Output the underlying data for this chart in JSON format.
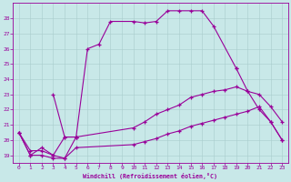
{
  "background_color": "#c8e8e8",
  "grid_color": "#a8cccc",
  "line_color": "#990099",
  "xlabel": "Windchill (Refroidissement éolien,°C)",
  "xlim_min": -0.5,
  "xlim_max": 23.5,
  "ylim_min": 18.5,
  "ylim_max": 29.0,
  "xticks": [
    0,
    1,
    2,
    3,
    4,
    5,
    6,
    7,
    8,
    9,
    10,
    11,
    12,
    13,
    14,
    15,
    16,
    17,
    18,
    19,
    20,
    21,
    22,
    23
  ],
  "yticks": [
    19,
    20,
    21,
    22,
    23,
    24,
    25,
    26,
    27,
    28
  ],
  "curve1_x": [
    0,
    1,
    2,
    3,
    4,
    5
  ],
  "curve1_y": [
    20.5,
    19.0,
    19.5,
    19.0,
    18.8,
    20.2
  ],
  "curve2_x": [
    3,
    4,
    5,
    6,
    7,
    8,
    10,
    11,
    12,
    13,
    14,
    15,
    16,
    17,
    19
  ],
  "curve2_y": [
    23.0,
    20.2,
    20.2,
    26.0,
    26.3,
    27.8,
    27.8,
    27.7,
    27.8,
    28.5,
    28.5,
    28.5,
    28.5,
    27.5,
    24.7
  ],
  "curve3_x": [
    0,
    1,
    2,
    3,
    4,
    5,
    10,
    11,
    12,
    13,
    14,
    15,
    16,
    17,
    18,
    19,
    20,
    21,
    22,
    23
  ],
  "curve3_y": [
    20.5,
    19.3,
    19.3,
    19.0,
    20.2,
    20.2,
    20.8,
    21.2,
    21.7,
    22.0,
    22.3,
    22.8,
    23.0,
    23.2,
    23.3,
    23.5,
    23.2,
    23.0,
    22.2,
    21.2
  ],
  "curve4_x": [
    0,
    1,
    2,
    3,
    4,
    5,
    10,
    11,
    12,
    13,
    14,
    15,
    16,
    17,
    18,
    19,
    20,
    21,
    22,
    23
  ],
  "curve4_y": [
    20.5,
    19.0,
    19.0,
    18.8,
    18.8,
    19.5,
    19.7,
    19.9,
    20.1,
    20.4,
    20.6,
    20.9,
    21.1,
    21.3,
    21.5,
    21.7,
    21.9,
    22.2,
    21.2,
    20.0
  ],
  "curve5_x": [
    19,
    20,
    21,
    22,
    23
  ],
  "curve5_y": [
    24.7,
    23.2,
    22.0,
    21.2,
    20.0
  ]
}
